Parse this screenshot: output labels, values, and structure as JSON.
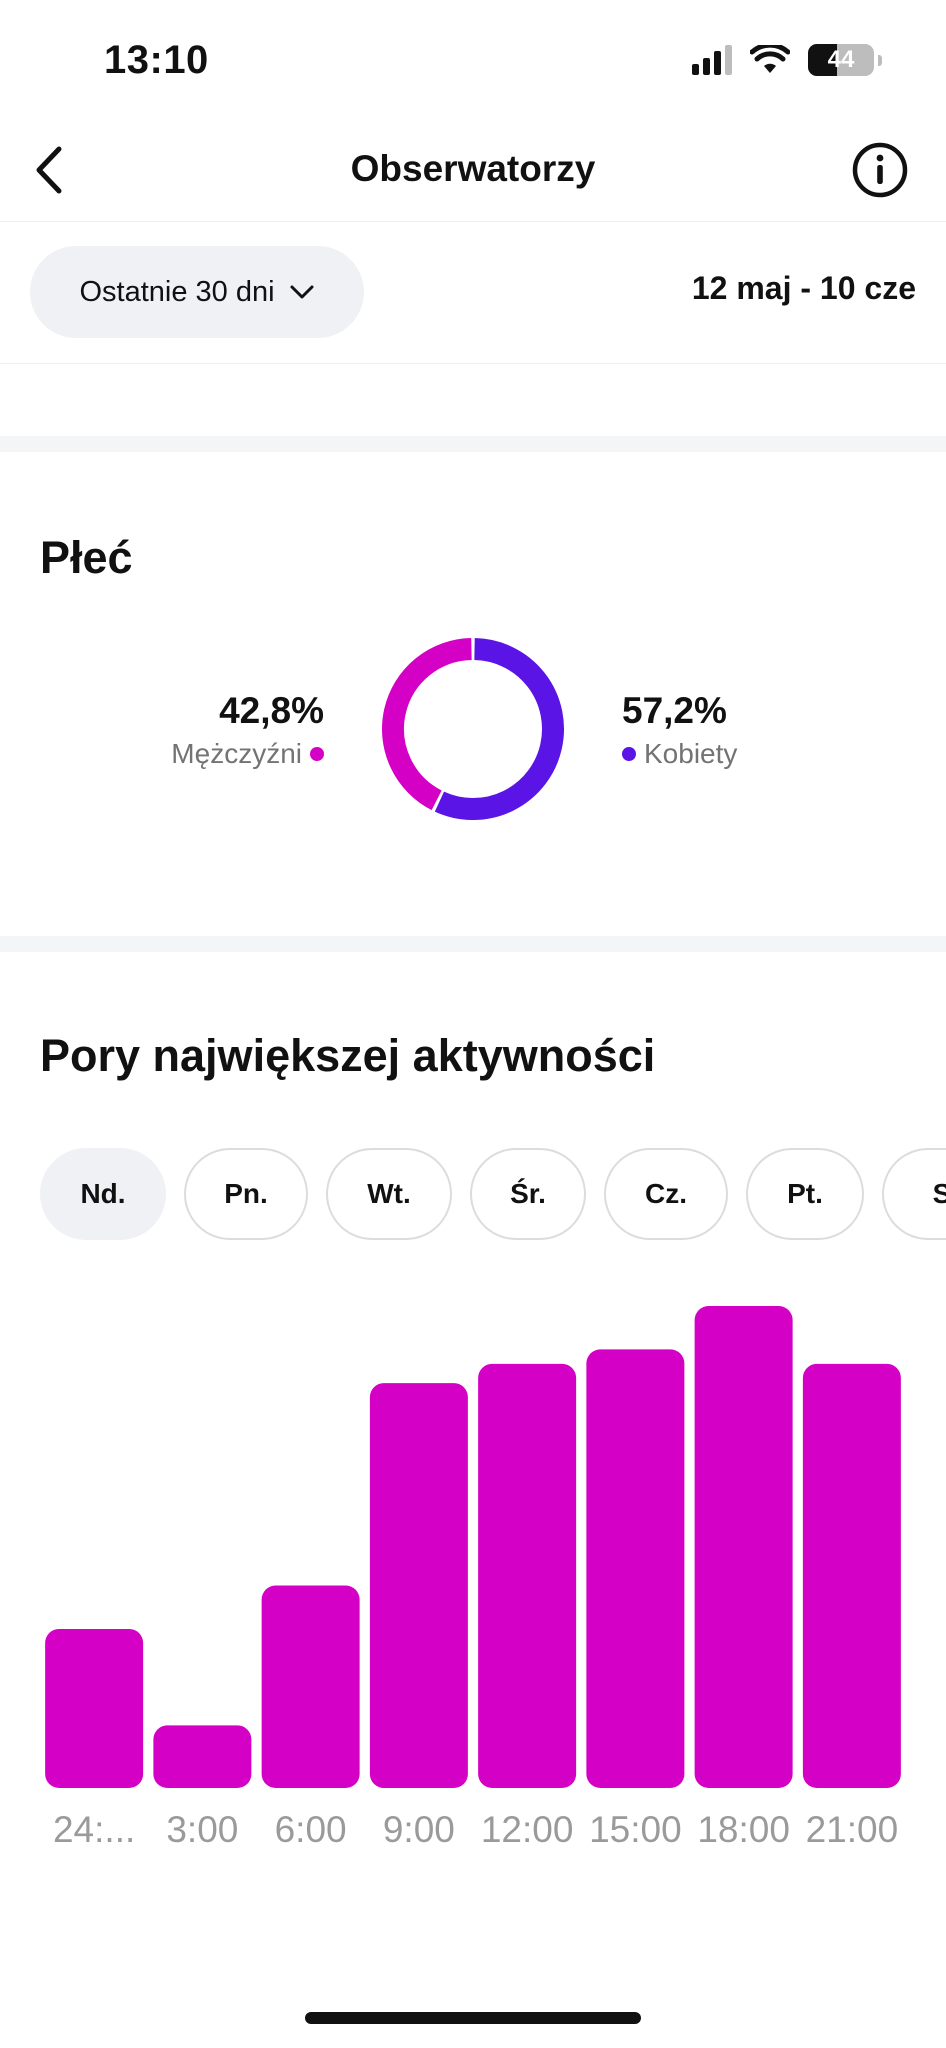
{
  "status_bar": {
    "time": "13:10",
    "battery": "44",
    "battery_level": 0.44
  },
  "nav": {
    "title": "Obserwatorzy"
  },
  "filter": {
    "period_label": "Ostatnie 30 dni",
    "date_range": "12 maj - 10 cze"
  },
  "gender": {
    "title": "Płeć",
    "men": {
      "value": "42,8%",
      "label": "Mężczyźni",
      "percent": 42.8,
      "color": "#d400c6"
    },
    "women": {
      "value": "57,2%",
      "label": "Kobiety",
      "percent": 57.2,
      "color": "#5a14e6"
    }
  },
  "activity": {
    "title": "Pory największej aktywności",
    "days": [
      "Nd.",
      "Pn.",
      "Wt.",
      "Śr.",
      "Cz.",
      "Pt.",
      "S"
    ],
    "selected_day": "Nd."
  },
  "chart_data": {
    "type": "bar",
    "categories": [
      "24:...",
      "3:00",
      "6:00",
      "9:00",
      "12:00",
      "15:00",
      "18:00",
      "21:00"
    ],
    "values": [
      33,
      13,
      42,
      84,
      88,
      91,
      100,
      88
    ],
    "ylim": [
      0,
      100
    ],
    "color": "#d400c6",
    "grid": false,
    "title": "",
    "xlabel": "",
    "ylabel": ""
  }
}
